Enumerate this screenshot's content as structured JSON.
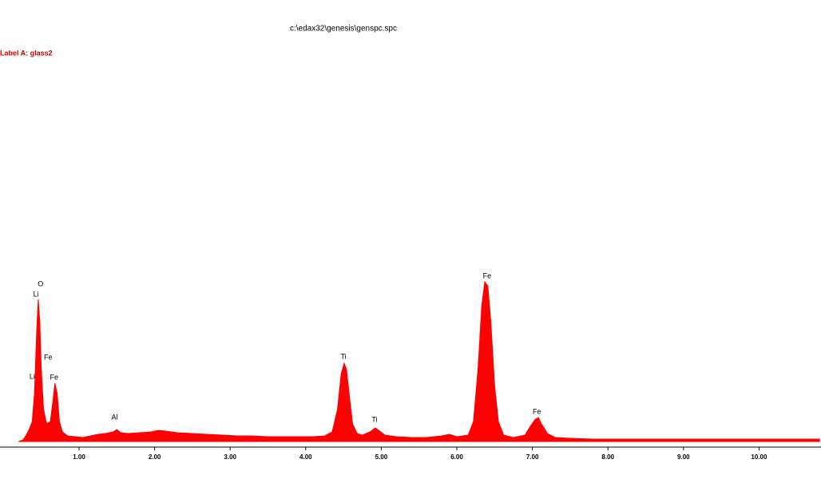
{
  "chart_data": {
    "type": "area",
    "title": "c:\\edax32\\genesis\\genspc.spc",
    "subtitle": "Label A: glass2",
    "color": "#ff0000",
    "subtitle_color": "#cc0000",
    "x": [
      0.2,
      0.26,
      0.3,
      0.34,
      0.38,
      0.41,
      0.44,
      0.46,
      0.48,
      0.5,
      0.53,
      0.57,
      0.62,
      0.66,
      0.68,
      0.71,
      0.74,
      0.78,
      0.85,
      0.95,
      1.05,
      1.15,
      1.25,
      1.35,
      1.45,
      1.5,
      1.55,
      1.65,
      1.8,
      1.95,
      2.05,
      2.15,
      2.3,
      2.5,
      2.7,
      2.9,
      3.1,
      3.3,
      3.5,
      3.7,
      3.9,
      4.1,
      4.25,
      4.35,
      4.42,
      4.47,
      4.51,
      4.54,
      4.58,
      4.62,
      4.68,
      4.75,
      4.85,
      4.92,
      4.98,
      5.05,
      5.2,
      5.4,
      5.6,
      5.8,
      5.9,
      6.0,
      6.15,
      6.22,
      6.28,
      6.33,
      6.37,
      6.41,
      6.45,
      6.5,
      6.55,
      6.62,
      6.75,
      6.9,
      6.98,
      7.04,
      7.08,
      7.12,
      7.2,
      7.3,
      7.5,
      7.8,
      8.1,
      8.4,
      8.7,
      9.0,
      9.3,
      9.6,
      9.9,
      10.2,
      10.5,
      10.8
    ],
    "values": [
      0,
      2,
      8,
      15,
      25,
      60,
      140,
      178,
      150,
      90,
      40,
      22,
      25,
      55,
      73,
      60,
      25,
      12,
      7,
      6,
      5,
      7,
      9,
      10,
      12,
      15,
      11,
      10,
      11,
      12,
      14,
      13,
      11,
      10,
      9,
      8,
      7,
      7,
      6,
      6,
      6,
      6,
      7,
      12,
      40,
      85,
      98,
      90,
      55,
      22,
      10,
      8,
      12,
      17,
      13,
      8,
      6,
      5,
      5,
      7,
      9,
      6,
      8,
      25,
      90,
      170,
      200,
      195,
      150,
      70,
      25,
      8,
      5,
      8,
      20,
      28,
      30,
      22,
      10,
      5,
      4,
      3,
      3,
      3,
      3,
      3,
      3,
      3,
      3,
      3,
      3,
      3
    ],
    "xlim": [
      0,
      10.82
    ],
    "ylim": [
      0,
      220
    ],
    "xticks": [
      {
        "value": 1,
        "label": "1.00"
      },
      {
        "value": 2,
        "label": "2.00"
      },
      {
        "value": 3,
        "label": "3.00"
      },
      {
        "value": 4,
        "label": "4.00"
      },
      {
        "value": 5,
        "label": "5.00"
      },
      {
        "value": 6,
        "label": "6.00"
      },
      {
        "value": 7,
        "label": "7.00"
      },
      {
        "value": 8,
        "label": "8.00"
      },
      {
        "value": 9,
        "label": "9.00"
      },
      {
        "value": 10,
        "label": "10.00"
      }
    ],
    "annotations": [
      {
        "text": "O",
        "x": 0.49,
        "y": 197
      },
      {
        "text": "Li",
        "x": 0.43,
        "y": 184
      },
      {
        "text": "Fe",
        "x": 0.59,
        "y": 105
      },
      {
        "text": "Li",
        "x": 0.38,
        "y": 81
      },
      {
        "text": "Fe",
        "x": 0.67,
        "y": 80
      },
      {
        "text": "Al",
        "x": 1.47,
        "y": 30
      },
      {
        "text": "Ti",
        "x": 4.5,
        "y": 106
      },
      {
        "text": "Ti",
        "x": 4.91,
        "y": 27
      },
      {
        "text": "Fe",
        "x": 6.4,
        "y": 207
      },
      {
        "text": "Fe",
        "x": 7.06,
        "y": 37
      }
    ]
  }
}
